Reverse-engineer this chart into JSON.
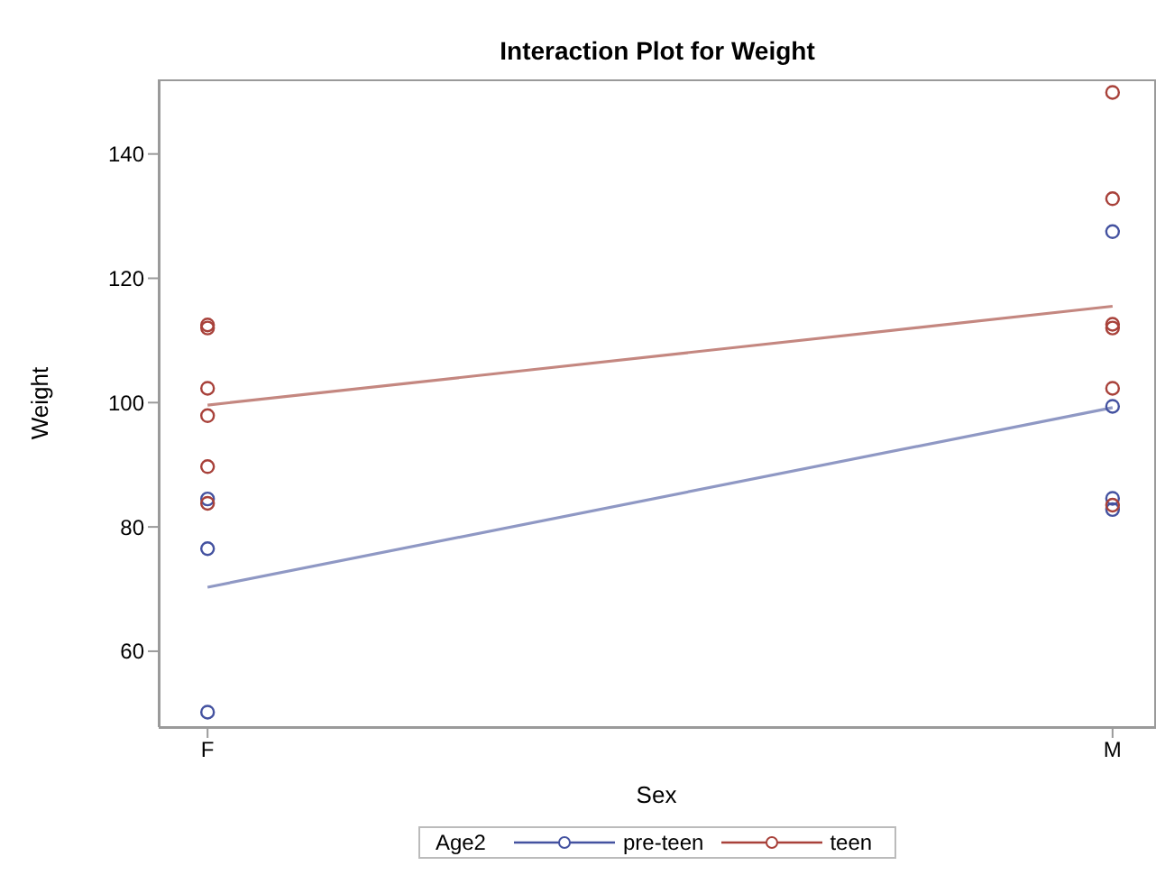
{
  "chart_data": {
    "type": "scatter",
    "title": "Interaction Plot for Weight",
    "xlabel": "Sex",
    "ylabel": "Weight",
    "legend_title": "Age2",
    "legend": "bottom",
    "marker": "circle",
    "categories": [
      "F",
      "M"
    ],
    "ylim": [
      47.8,
      152
    ],
    "yticks": [
      60,
      80,
      100,
      120,
      140
    ],
    "series": [
      {
        "name": "pre-teen",
        "color": "#4452a0",
        "x": [
          "F",
          "F",
          "F",
          "M",
          "M",
          "M",
          "M"
        ],
        "values": [
          84.5,
          76.5,
          50.2,
          127.5,
          99.4,
          84.6,
          82.8
        ]
      },
      {
        "name": "teen",
        "color": "#a8413a",
        "x": [
          "F",
          "F",
          "F",
          "F",
          "F",
          "F",
          "M",
          "M",
          "M",
          "M",
          "M",
          "M"
        ],
        "values": [
          112.5,
          112,
          102.3,
          97.9,
          89.7,
          83.8,
          149.9,
          132.8,
          112.6,
          112,
          102.3,
          83.5
        ]
      },
      {
        "type": "line",
        "marker": "none",
        "color": "#8f98c4",
        "values": [
          70.3,
          99.2
        ]
      },
      {
        "type": "line",
        "marker": "none",
        "color": "#c48780",
        "values": [
          99.6,
          115.5
        ]
      }
    ]
  }
}
